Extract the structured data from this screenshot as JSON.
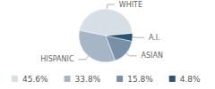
{
  "chart_data": {
    "type": "pie",
    "categories": [
      "WHITE",
      "HISPANIC",
      "ASIAN",
      "A.I."
    ],
    "values": [
      45.6,
      33.8,
      15.8,
      4.8
    ],
    "value_labels": [
      "45.6%",
      "33.8%",
      "15.8%",
      "4.8%"
    ],
    "colors": [
      "#d6dee6",
      "#a6b6c6",
      "#7890a8",
      "#2d5272"
    ],
    "legend": "bottom"
  }
}
